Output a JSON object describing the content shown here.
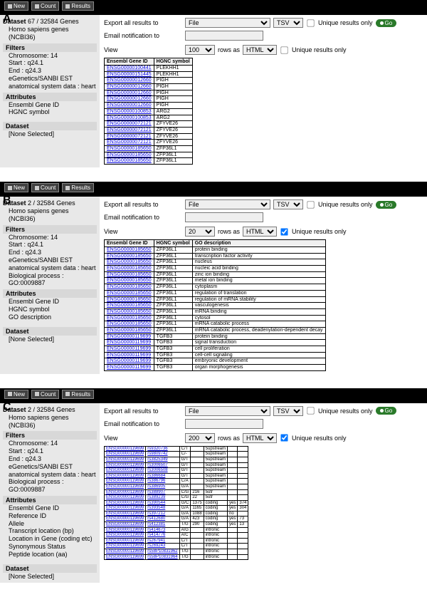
{
  "topbar": {
    "new": "New",
    "count": "Count",
    "results": "Results"
  },
  "export": {
    "exportLabel": "Export  all results to",
    "emailLabel": "Email notification to",
    "viewLabel": "View",
    "fileOpt": "File",
    "tsvOpt": "TSV",
    "uniqueLabel": "Unique results only",
    "goLabel": "Go",
    "rowsAs": "rows as",
    "htmlOpt": "HTML"
  },
  "panelA": {
    "label": "A",
    "dsCount": "67 / 32584 Genes",
    "dsLabel": "Dataset",
    "species": "Homo sapiens genes (NCBI36)",
    "filtersHdr": "Filters",
    "filters": [
      "Chromosome: 14",
      "Start : q24.1",
      "End : q24.3",
      "eGenetics/SANBI EST anatomical system data : heart"
    ],
    "attrHdr": "Attributes",
    "attrs": [
      "Ensembl Gene ID",
      "HGNC symbol"
    ],
    "ds2Hdr": "Dataset",
    "ds2": "[None Selected]",
    "viewCount": "100",
    "headers": [
      "Ensembl Gene ID",
      "HGNC symbol"
    ],
    "rows": [
      [
        "ENSG00000100441",
        "PLEKHH1"
      ],
      [
        "ENSG00000151445",
        "PLEKHH1"
      ],
      [
        "ENSG00000012660",
        "PIGH"
      ],
      [
        "ENSG00000012660",
        "PIGH"
      ],
      [
        "ENSG00000012660",
        "PIGH"
      ],
      [
        "ENSG00000012660",
        "PIGH"
      ],
      [
        "ENSG00000012660",
        "PIGH"
      ],
      [
        "ENSG00000100853",
        "ARG2"
      ],
      [
        "ENSG00000100853",
        "ARG2"
      ],
      [
        "ENSG00000072121",
        "ZFYVE26"
      ],
      [
        "ENSG00000072121",
        "ZFYVE26"
      ],
      [
        "ENSG00000072121",
        "ZFYVE26"
      ],
      [
        "ENSG00000072121",
        "ZFYVE26"
      ],
      [
        "ENSG00000185650",
        "ZFP36L1"
      ],
      [
        "ENSG00000185650",
        "ZFP36L1"
      ],
      [
        "ENSG00000185650",
        "ZFP36L1"
      ]
    ]
  },
  "panelB": {
    "label": "B",
    "dsCount": "2 / 32584 Genes",
    "dsLabel": "Dataset",
    "species": "Homo sapiens genes (NCBI36)",
    "filtersHdr": "Filters",
    "filters": [
      "Chromosome: 14",
      "Start : q24.1",
      "End : q24.3",
      "eGenetics/SANBI EST anatomical system data : heart",
      "Biological process :\nGO:0009887"
    ],
    "attrHdr": "Attributes",
    "attrs": [
      "Ensembl Gene ID",
      "HGNC symbol",
      "GO description"
    ],
    "ds2Hdr": "Dataset",
    "ds2": "[None Selected]",
    "viewCount": "20",
    "headers": [
      "Ensembl Gene ID",
      "HGNC symbol",
      "GO description"
    ],
    "rows": [
      [
        "ENSG00000185650",
        "ZFP36L1",
        "protein binding"
      ],
      [
        "ENSG00000185650",
        "ZFP36L1",
        "transcription factor activity"
      ],
      [
        "ENSG00000185650",
        "ZFP36L1",
        "nucleus"
      ],
      [
        "ENSG00000185650",
        "ZFP36L1",
        "nucleic acid binding"
      ],
      [
        "ENSG00000185650",
        "ZFP36L1",
        "zinc ion binding"
      ],
      [
        "ENSG00000185650",
        "ZFP36L1",
        "metal ion binding"
      ],
      [
        "ENSG00000185650",
        "ZFP36L1",
        "cytoplasm"
      ],
      [
        "ENSG00000185650",
        "ZFP36L1",
        "regulation of translation"
      ],
      [
        "ENSG00000185650",
        "ZFP36L1",
        "regulation of mRNA stability"
      ],
      [
        "ENSG00000185650",
        "ZFP36L1",
        "vasculogenesis"
      ],
      [
        "ENSG00000185650",
        "ZFP36L1",
        "mRNA binding"
      ],
      [
        "ENSG00000185650",
        "ZFP36L1",
        "cytosol"
      ],
      [
        "ENSG00000185650",
        "ZFP36L1",
        "mRNA catabolic process"
      ],
      [
        "ENSG00000185650",
        "ZFP36L1",
        "mRNA catabolic process, deadenylation-dependent decay"
      ],
      [
        "ENSG00000119699",
        "TGFB3",
        "protein binding"
      ],
      [
        "ENSG00000119699",
        "TGFB3",
        "signal transduction"
      ],
      [
        "ENSG00000119699",
        "TGFB3",
        "cell proliferation"
      ],
      [
        "ENSG00000119699",
        "TGFB3",
        "cell-cell signaling"
      ],
      [
        "ENSG00000119699",
        "TGFB3",
        "embryonic development"
      ],
      [
        "ENSG00000119699",
        "TGFB3",
        "organ morphogenesis"
      ]
    ]
  },
  "panelC": {
    "label": "C",
    "dsCount": "2 / 32584 Genes",
    "dsLabel": "Dataset",
    "species": "Homo sapiens genes (NCBI36)",
    "filtersHdr": "Filters",
    "filters": [
      "Chromosome: 14",
      "Start : q24.1",
      "End : q24.3",
      "eGenetics/SANBI EST anatomical system data : heart",
      "Biological process :\nGO:0009887"
    ],
    "attrHdr": "Attributes",
    "attrs": [
      "Ensembl Gene ID",
      "Reference ID",
      "Allele",
      "Transcript location (bp)",
      "Location in Gene (coding etc)",
      "Synonymous Status",
      "Peptide location (aa)"
    ],
    "ds2Hdr": "Dataset",
    "ds2": "[None Selected]",
    "viewCount": "200",
    "headers": [
      "",
      "",
      "",
      "",
      "",
      "",
      ""
    ],
    "rows": [
      [
        "ENSG00000119699",
        "rs9320736",
        "C/T",
        "",
        "5upstream",
        "",
        ""
      ],
      [
        "ENSG00000119699",
        "rs9809742",
        "C/-",
        "",
        "5upstream",
        "",
        ""
      ],
      [
        "ENSG00000119699",
        "rs3825349",
        "G/T",
        "",
        "5upstream",
        "",
        ""
      ],
      [
        "ENSG00000119699",
        "rs3006507",
        "G/T",
        "",
        "5upstream",
        "",
        ""
      ],
      [
        "ENSG00000119699",
        "rs3006508",
        "G/T",
        "",
        "5upstream",
        "",
        ""
      ],
      [
        "ENSG00000119699",
        "rs386684",
        "G/T",
        "",
        "5upstream",
        "",
        ""
      ],
      [
        "ENSG00000119699",
        "rs386796",
        "C/A",
        "",
        "5upstream",
        "",
        ""
      ],
      [
        "ENSG00000119699",
        "rs386905",
        "G/A",
        "",
        "5upstream",
        "",
        ""
      ],
      [
        "ENSG00000119699",
        "rs388907",
        "C/G",
        "216",
        "5utr",
        "",
        ""
      ],
      [
        "ENSG00000119699",
        "rs389239",
        "C/G",
        "22",
        "5utr",
        "",
        ""
      ],
      [
        "ENSG00000119699",
        "rs390544",
        "G/C",
        "1375",
        "coding",
        "yes",
        "374"
      ],
      [
        "ENSG00000119699",
        "rs393548",
        "G/A",
        "1165",
        "coding",
        "yes",
        "304"
      ],
      [
        "ENSG00000119699",
        "rs397212",
        "G/A",
        "1088",
        "coding",
        "no",
        ""
      ],
      [
        "ENSG00000119699",
        "rs412680",
        "G/A",
        "423",
        "coding",
        "yes",
        "73"
      ],
      [
        "ENSG00000119699",
        "rs412381",
        "T/G",
        "290",
        "coding",
        "yes",
        "13"
      ],
      [
        "ENSG00000119699",
        "rs414673",
        "A/G",
        "",
        "intronic",
        "",
        ""
      ],
      [
        "ENSG00000119699",
        "rs414776",
        "A/C",
        "",
        "intronic",
        "",
        ""
      ],
      [
        "ENSG00000119699",
        "rs267941",
        "C/T",
        "",
        "intronic",
        "",
        ""
      ],
      [
        "ENSG00000119699",
        "rs269243",
        "C/T",
        "",
        "intronic",
        "",
        ""
      ],
      [
        "ENSG00000119699",
        "rs58P10831962",
        "T/G",
        "",
        "intronic",
        "",
        ""
      ],
      [
        "ENSG00000119699",
        "rs58P10831964",
        "T/G",
        "",
        "intronic",
        "",
        ""
      ]
    ]
  }
}
